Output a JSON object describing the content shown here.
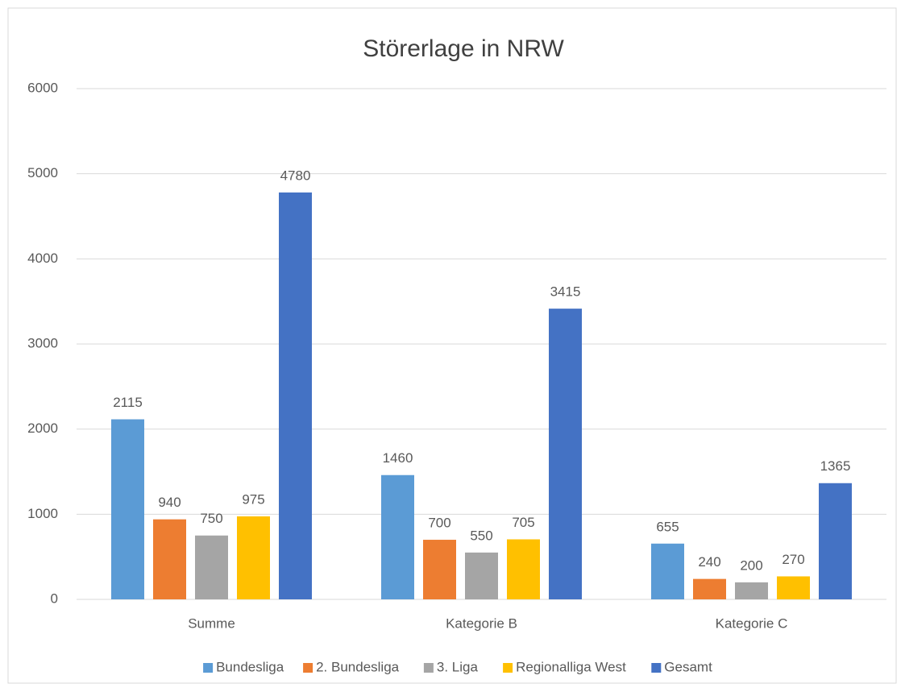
{
  "chart_data": {
    "type": "bar",
    "title": "Störerlage in NRW",
    "categories": [
      "Summe",
      "Kategorie B",
      "Kategorie C"
    ],
    "series": [
      {
        "name": "Bundesliga",
        "color": "#5b9bd5",
        "values": [
          2115,
          1460,
          655
        ]
      },
      {
        "name": "2. Bundesliga",
        "color": "#ed7d31",
        "values": [
          940,
          700,
          240
        ]
      },
      {
        "name": "3. Liga",
        "color": "#a5a5a5",
        "values": [
          750,
          550,
          200
        ]
      },
      {
        "name": "Regionalliga West",
        "color": "#ffc000",
        "values": [
          975,
          705,
          270
        ]
      },
      {
        "name": "Gesamt",
        "color": "#4472c4",
        "values": [
          4780,
          3415,
          1365
        ]
      }
    ],
    "ylim": [
      0,
      6000
    ],
    "yticks": [
      0,
      1000,
      2000,
      3000,
      4000,
      5000,
      6000
    ],
    "grid": true,
    "legend": "bottom"
  }
}
